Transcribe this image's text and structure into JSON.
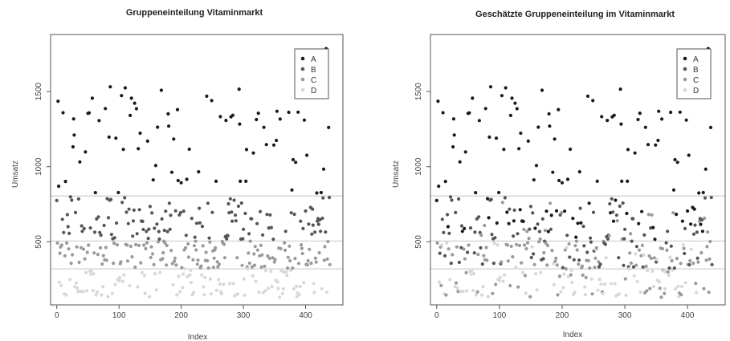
{
  "colors": {
    "A": "#1a1a1a",
    "B": "#555555",
    "C": "#9a9a9a",
    "D": "#d8d8d8",
    "hline": "#cccccc",
    "frame": "#555555"
  },
  "chart_data": [
    {
      "type": "scatter",
      "title": "Gruppeneinteilung Vitaminmarkt",
      "xlabel": "Index",
      "ylabel": "Umsatz",
      "xlim": [
        -10,
        460
      ],
      "ylim": [
        80,
        1880
      ],
      "xticks": [
        0,
        100,
        200,
        300,
        400
      ],
      "yticks": [
        500,
        1000,
        1500
      ],
      "hlines": [
        320,
        505,
        805
      ],
      "legend": [
        "A",
        "B",
        "C",
        "D"
      ],
      "legend_position": "top-right",
      "grouping": "threshold",
      "seed": 7
    },
    {
      "type": "scatter",
      "title": "Geschätzte Gruppeneinteilung im Vitaminmarkt",
      "xlabel": "Index",
      "ylabel": "Umsatz",
      "xlim": [
        -10,
        460
      ],
      "ylim": [
        80,
        1880
      ],
      "xticks": [
        0,
        100,
        200,
        300,
        400
      ],
      "yticks": [
        500,
        1000,
        1500
      ],
      "hlines": [
        320,
        505,
        805
      ],
      "legend": [
        "A",
        "B",
        "C",
        "D"
      ],
      "legend_position": "top-right",
      "grouping": "estimated",
      "seed": 7
    }
  ]
}
